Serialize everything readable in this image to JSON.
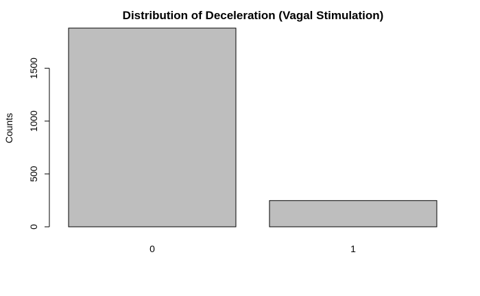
{
  "chart_data": {
    "type": "bar",
    "title": "Distribution of Deceleration (Vagal Stimulation)",
    "xlabel": "",
    "ylabel": "Counts",
    "categories": [
      "0",
      "1"
    ],
    "values": [
      1880,
      248
    ],
    "yticks": [
      0,
      500,
      1000,
      1500
    ],
    "ylim": [
      0,
      1880
    ],
    "bar_fill": "#bebebe",
    "bar_stroke": "#000000",
    "grid": false
  }
}
